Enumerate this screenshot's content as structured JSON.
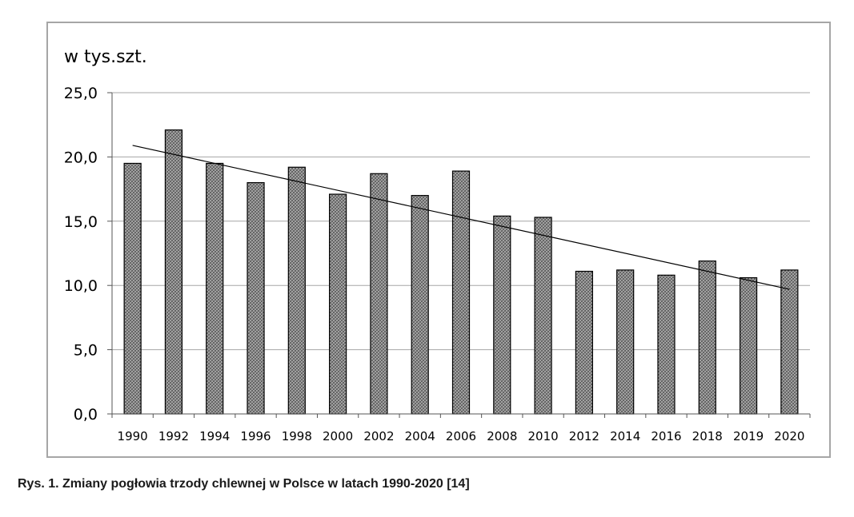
{
  "caption": "Rys. 1. Zmiany pogłowia trzody chlewnej w Polsce w latach 1990-2020 [14]",
  "chart_data": {
    "type": "bar",
    "title": "",
    "unit_label": "w tys.szt.",
    "xlabel": "",
    "ylabel": "",
    "categories": [
      "1990",
      "1992",
      "1994",
      "1996",
      "1998",
      "2000",
      "2002",
      "2004",
      "2006",
      "2008",
      "2010",
      "2012",
      "2014",
      "2016",
      "2018",
      "2019",
      "2020"
    ],
    "values": [
      19.5,
      22.1,
      19.5,
      18.0,
      19.2,
      17.1,
      18.7,
      17.0,
      18.9,
      15.4,
      15.3,
      11.1,
      11.2,
      10.8,
      11.9,
      10.6,
      11.2
    ],
    "ylim": [
      0,
      25
    ],
    "yticks": [
      "0,0",
      "5,0",
      "10,0",
      "15,0",
      "20,0",
      "25,0"
    ],
    "ytick_values": [
      0,
      5,
      10,
      15,
      20,
      25
    ],
    "trendline": {
      "type": "linear",
      "start": 20.9,
      "end": 9.7
    },
    "grid": true,
    "legend": "none",
    "colors": {
      "bar_fill": "#7f7f7f",
      "bar_stroke": "#000000",
      "grid": "#a6a6a6",
      "trend": "#000000"
    }
  }
}
